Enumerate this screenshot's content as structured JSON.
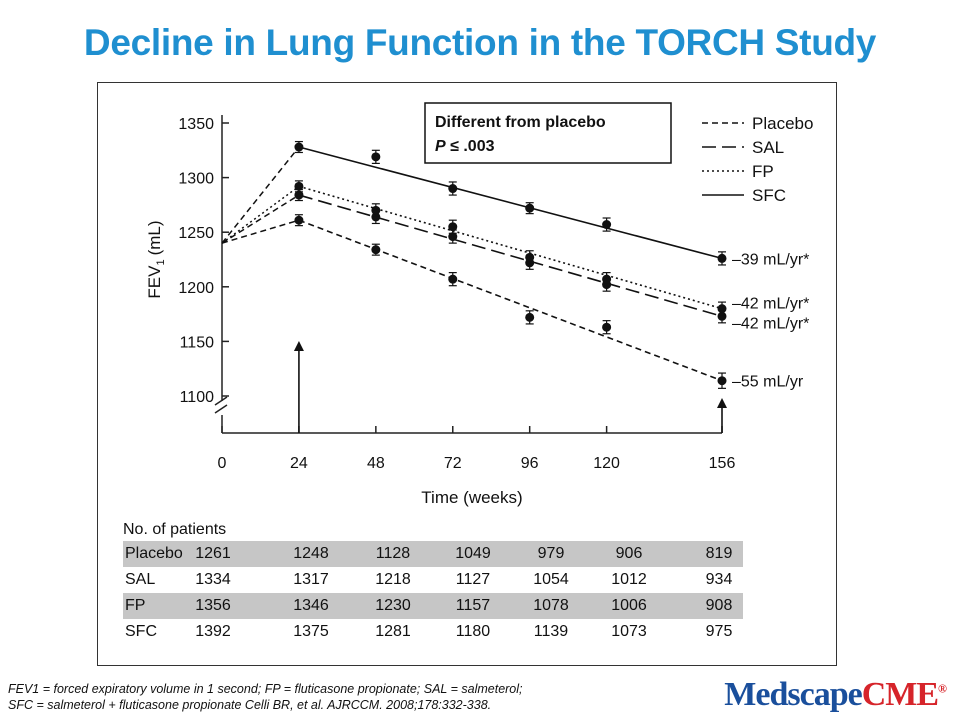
{
  "slide": {
    "title": "Decline in Lung Function in the TORCH Study",
    "footnote_line1": "FEV1 = forced expiratory volume in 1 second; FP = fluticasone propionate; SAL = salmeterol;",
    "footnote_line2": "SFC = salmeterol + fluticasone propionate Celli BR, et al. AJRCCM. 2008;178:332-338.",
    "logo_part1": "Medscape",
    "logo_part2": "CME",
    "logo_mark": "®"
  },
  "chart_data": {
    "type": "line",
    "xlabel": "Time (weeks)",
    "ylabel": "FEV",
    "ylabel_sub": "1",
    "ylabel_unit": "(mL)",
    "x_ticks": [
      0,
      24,
      48,
      72,
      96,
      120,
      156
    ],
    "y_ticks": [
      1100,
      1150,
      1200,
      1250,
      1300,
      1350
    ],
    "ylim": [
      1100,
      1350
    ],
    "xlim": [
      0,
      156
    ],
    "grid": false,
    "legend_position": "top-right",
    "baseline": {
      "x": 0,
      "y": 1240
    },
    "series": [
      {
        "name": "Placebo",
        "dash": "short-dash",
        "x": [
          24,
          48,
          72,
          96,
          120,
          156
        ],
        "values": [
          1261,
          1234,
          1207,
          1172,
          1163,
          1114
        ],
        "err": [
          5,
          5,
          6,
          6,
          6,
          7
        ],
        "end_label": "–55 mL/yr"
      },
      {
        "name": "SAL",
        "dash": "long-dash",
        "x": [
          24,
          48,
          72,
          96,
          120,
          156
        ],
        "values": [
          1284,
          1264,
          1246,
          1222,
          1202,
          1173
        ],
        "err": [
          5,
          6,
          6,
          6,
          6,
          6
        ],
        "end_label": "–42 mL/yr*"
      },
      {
        "name": "FP",
        "dash": "dotted",
        "x": [
          24,
          48,
          72,
          96,
          120,
          156
        ],
        "values": [
          1292,
          1270,
          1255,
          1227,
          1207,
          1180
        ],
        "err": [
          5,
          6,
          6,
          6,
          6,
          6
        ],
        "end_label": "–42 mL/yr*"
      },
      {
        "name": "SFC",
        "dash": "solid",
        "x": [
          24,
          48,
          72,
          96,
          120,
          156
        ],
        "values": [
          1328,
          1319,
          1290,
          1272,
          1257,
          1226
        ],
        "err": [
          5,
          6,
          6,
          5,
          6,
          6
        ],
        "end_label": "–39 mL/yr*"
      }
    ],
    "annotation_line1": "Different from placebo",
    "annotation_line2_italic": "P",
    "annotation_line2_rest": " ≤ .003",
    "arrows_at_weeks": [
      24,
      156
    ]
  },
  "patients": {
    "title": "No. of patients",
    "rows": [
      {
        "label": "Placebo",
        "shaded": true,
        "values": [
          "1261",
          "1248",
          "1128",
          "1049",
          "979",
          "906",
          "819"
        ]
      },
      {
        "label": "SAL",
        "shaded": false,
        "values": [
          "1334",
          "1317",
          "1218",
          "1127",
          "1054",
          "1012",
          "934"
        ]
      },
      {
        "label": "FP",
        "shaded": true,
        "values": [
          "1356",
          "1346",
          "1230",
          "1157",
          "1078",
          "1006",
          "908"
        ]
      },
      {
        "label": "SFC",
        "shaded": false,
        "values": [
          "1392",
          "1375",
          "1281",
          "1180",
          "1139",
          "1073",
          "975"
        ]
      }
    ]
  }
}
